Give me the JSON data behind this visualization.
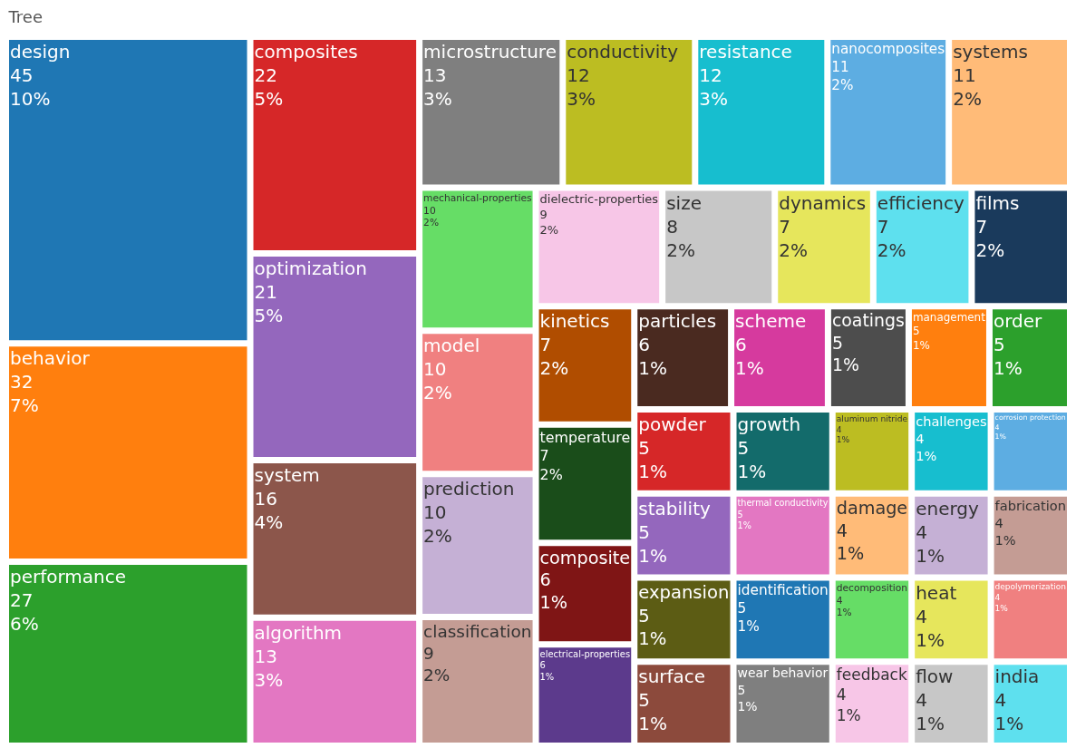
{
  "chart_data": {
    "type": "other",
    "title": "Tree",
    "categories": [
      "design",
      "behavior",
      "performance",
      "composites",
      "optimization",
      "system",
      "algorithm",
      "microstructure",
      "conductivity",
      "resistance",
      "nanocomposites",
      "systems",
      "mechanical-properties",
      "model",
      "prediction",
      "classification",
      "dielectric-properties",
      "size",
      "dynamics",
      "efficiency",
      "films",
      "kinetics",
      "temperature",
      "composite",
      "electrical-properties",
      "particles",
      "scheme",
      "coatings",
      "management",
      "order",
      "powder",
      "stability",
      "expansion",
      "surface",
      "growth",
      "thermal conductivity",
      "identification",
      "wear behavior",
      "aluminum nitride",
      "challenges",
      "corrosion protection",
      "damage",
      "energy",
      "fabrication",
      "decomposition",
      "feedback",
      "heat",
      "depolymerization",
      "flow",
      "india"
    ],
    "values": [
      45,
      32,
      27,
      22,
      21,
      16,
      13,
      13,
      12,
      12,
      11,
      11,
      10,
      10,
      10,
      9,
      9,
      8,
      7,
      7,
      7,
      7,
      7,
      6,
      6,
      6,
      6,
      5,
      5,
      5,
      5,
      5,
      5,
      5,
      5,
      5,
      5,
      5,
      4,
      4,
      4,
      4,
      4,
      4,
      4,
      4,
      4,
      4,
      4,
      4
    ],
    "value_labels": [
      "45\n10%",
      "32\n7%",
      "27\n6%",
      "22\n5%",
      "21\n5%",
      "16\n4%",
      "13\n3%",
      "13\n3%",
      "12\n3%",
      "12\n3%",
      "11\n2%",
      "11\n2%",
      "10\n2%",
      "10\n2%",
      "10\n2%",
      "9\n2%",
      "9\n2%",
      "8\n2%",
      "7\n2%",
      "7\n2%",
      "7\n2%",
      "7\n2%",
      "7\n2%",
      "6\n1%",
      "6\n1%",
      "6\n1%",
      "6\n1%",
      "5\n1%",
      "5\n1%",
      "5\n1%",
      "5\n1%",
      "5\n1%",
      "5\n1%",
      "5\n1%",
      "5\n1%",
      "5\n1%",
      "5\n1%",
      "5\n1%",
      "4\n1%",
      "4\n1%",
      "4\n1%",
      "4\n1%",
      "4\n1%",
      "4\n1%",
      "4\n1%",
      "4\n1%",
      "4\n1%",
      "4\n1%",
      "4\n1%",
      "4\n1%"
    ],
    "colors": [
      "#1f77b4",
      "#ff7f0e",
      "#2ca02c",
      "#d62728",
      "#9467bd",
      "#8c564b",
      "#e377c2",
      "#7f7f7f",
      "#bcbd22",
      "#17becf",
      "#5dade2",
      "#ffbb78",
      "#66dd66",
      "#f08080",
      "#c5b0d5",
      "#c49c94",
      "#f7c6e7",
      "#c7c7c7",
      "#e6e65c",
      "#5ee0ee",
      "#1a3a5c",
      "#b04d00",
      "#1a4d1a",
      "#7f1515",
      "#5c3a8c",
      "#4a2a20",
      "#d63a9e",
      "#4d4d4d",
      "#ff7f0e",
      "#2ca02c",
      "#d62728",
      "#9467bd",
      "#5c5c14",
      "#8c4a3c",
      "#136b6b",
      "#e377c2",
      "#1f77b4",
      "#7f7f7f",
      "#bcbd22",
      "#17becf",
      "#5dade2",
      "#ffbb78",
      "#c5b0d5",
      "#c49c94",
      "#66dd66",
      "#f7c6e7",
      "#e6e65c",
      "#f08080",
      "#c7c7c7",
      "#5ee0ee"
    ]
  }
}
